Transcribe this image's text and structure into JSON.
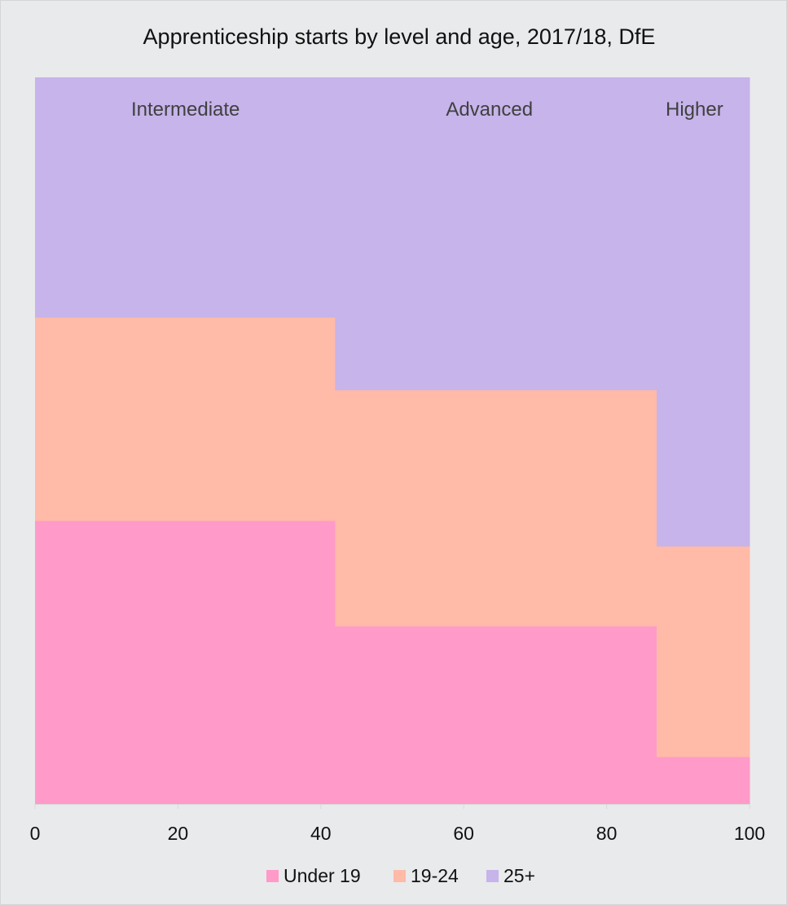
{
  "chart_data": {
    "type": "marimekko",
    "title": "Apprenticeship starts by level and age, 2017/18, DfE",
    "xlabel": "",
    "ylabel": "",
    "xlim": [
      0,
      100
    ],
    "ylim": [
      0,
      100
    ],
    "x_ticks": [
      "0",
      "20",
      "40",
      "60",
      "80",
      "100"
    ],
    "x_tick_values": [
      0,
      20,
      40,
      60,
      80,
      100
    ],
    "categories": [
      "Intermediate",
      "Advanced",
      "Higher"
    ],
    "category_widths": [
      42,
      45,
      13
    ],
    "series": [
      {
        "name": "Under 19",
        "color": "#ff9ac9",
        "values": [
          39,
          24.5,
          6.5
        ]
      },
      {
        "name": "19-24",
        "color": "#ffbaa8",
        "values": [
          28,
          32.5,
          29
        ]
      },
      {
        "name": "25+",
        "color": "#c6b4ea",
        "values": [
          33,
          43,
          64.5
        ]
      }
    ],
    "grid": false,
    "legend_position": "bottom"
  }
}
